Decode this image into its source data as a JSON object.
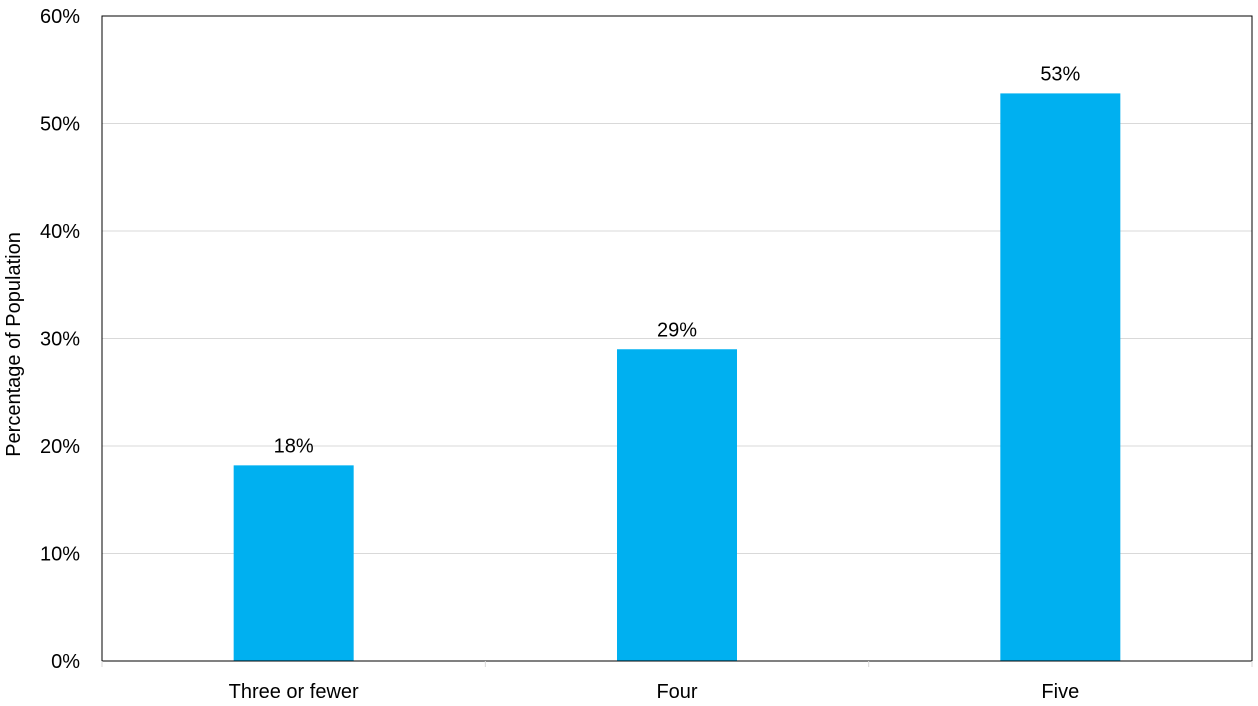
{
  "chart_data": {
    "type": "bar",
    "title": "",
    "xlabel": "",
    "ylabel": "Percentage of Population",
    "categories": [
      "Three or fewer",
      "Four",
      "Five"
    ],
    "values": [
      18.2,
      29.0,
      52.8
    ],
    "data_labels": [
      "18%",
      "29%",
      "53%"
    ],
    "ylim": [
      0,
      60
    ],
    "y_ticks": [
      0,
      10,
      20,
      30,
      40,
      50,
      60
    ],
    "y_tick_labels": [
      "0%",
      "10%",
      "20%",
      "30%",
      "40%",
      "50%",
      "60%"
    ],
    "grid": true,
    "legend": "none",
    "bar_color": "#00B0F0",
    "grid_color": "#D9D9D9"
  }
}
